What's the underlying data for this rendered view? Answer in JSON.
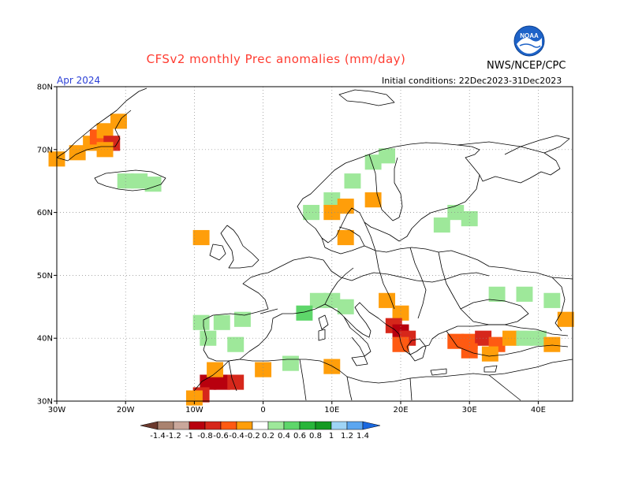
{
  "header": {
    "title": "CFSv2 monthly Prec anomalies (mm/day)",
    "source": "NWS/NCEP/CPC",
    "period": "Apr 2024",
    "initial_conditions": "Initial conditions: 22Dec2023-31Dec2023",
    "logo_text": "NOAA"
  },
  "map": {
    "lon_labels": [
      "30W",
      "20W",
      "10W",
      "0",
      "10E",
      "20E",
      "30E",
      "40E"
    ],
    "lat_labels": [
      "80N",
      "70N",
      "60N",
      "50N",
      "40N",
      "30N"
    ],
    "lon_values": [
      -30,
      -20,
      -10,
      0,
      10,
      20,
      30,
      40
    ],
    "lat_values": [
      80,
      70,
      60,
      50,
      40,
      30
    ],
    "extent": {
      "lon_min": -30,
      "lon_max": 45,
      "lat_min": 30,
      "lat_max": 80
    },
    "anomaly_cells": [
      {
        "lon": -30,
        "lat": 68.5,
        "v": -0.3
      },
      {
        "lon": -27,
        "lat": 69.5,
        "v": -0.3
      },
      {
        "lon": -25,
        "lat": 71,
        "v": -0.3
      },
      {
        "lon": -24,
        "lat": 72,
        "v": -0.4
      },
      {
        "lon": -23,
        "lat": 73,
        "v": -0.3
      },
      {
        "lon": -22,
        "lat": 71,
        "v": -0.6
      },
      {
        "lon": -23,
        "lat": 70,
        "v": -0.3
      },
      {
        "lon": -21,
        "lat": 74.5,
        "v": -0.3
      },
      {
        "lon": -20,
        "lat": 65,
        "v": 0.3
      },
      {
        "lon": -18,
        "lat": 65,
        "v": 0.3
      },
      {
        "lon": -16,
        "lat": 64.5,
        "v": 0.3
      },
      {
        "lon": 10,
        "lat": 62,
        "v": 0.3
      },
      {
        "lon": 13,
        "lat": 65,
        "v": 0.3
      },
      {
        "lon": 16,
        "lat": 68,
        "v": 0.3
      },
      {
        "lon": 18,
        "lat": 69,
        "v": 0.3
      },
      {
        "lon": 7,
        "lat": 60,
        "v": 0.3
      },
      {
        "lon": 10,
        "lat": 60,
        "v": -0.3
      },
      {
        "lon": 12,
        "lat": 61,
        "v": -0.3
      },
      {
        "lon": 16,
        "lat": 62,
        "v": -0.3
      },
      {
        "lon": 12,
        "lat": 56,
        "v": -0.3
      },
      {
        "lon": 28,
        "lat": 60,
        "v": 0.3
      },
      {
        "lon": 30,
        "lat": 59,
        "v": 0.3
      },
      {
        "lon": 26,
        "lat": 58,
        "v": 0.3
      },
      {
        "lon": -9,
        "lat": 56,
        "v": -0.3
      },
      {
        "lon": 8,
        "lat": 46,
        "v": 0.4
      },
      {
        "lon": 10,
        "lat": 46,
        "v": 0.3
      },
      {
        "lon": 12,
        "lat": 45,
        "v": 0.3
      },
      {
        "lon": 6,
        "lat": 44,
        "v": 0.5
      },
      {
        "lon": 18,
        "lat": 46,
        "v": -0.3
      },
      {
        "lon": 20,
        "lat": 44,
        "v": -0.3
      },
      {
        "lon": 19,
        "lat": 42,
        "v": -0.6
      },
      {
        "lon": 20,
        "lat": 41,
        "v": -0.8
      },
      {
        "lon": 21,
        "lat": 40,
        "v": -0.6
      },
      {
        "lon": 20,
        "lat": 39,
        "v": -0.4
      },
      {
        "lon": 28,
        "lat": 39.5,
        "v": -0.4
      },
      {
        "lon": 30,
        "lat": 39.5,
        "v": -0.5
      },
      {
        "lon": 32,
        "lat": 40,
        "v": -0.6
      },
      {
        "lon": 34,
        "lat": 39,
        "v": -0.4
      },
      {
        "lon": 30,
        "lat": 38,
        "v": -0.4
      },
      {
        "lon": 33,
        "lat": 37.5,
        "v": -0.3
      },
      {
        "lon": 36,
        "lat": 40,
        "v": -0.3
      },
      {
        "lon": 38,
        "lat": 40,
        "v": 0.3
      },
      {
        "lon": 40,
        "lat": 40,
        "v": 0.3
      },
      {
        "lon": 42,
        "lat": 39,
        "v": -0.3
      },
      {
        "lon": 44,
        "lat": 43,
        "v": -0.3
      },
      {
        "lon": 34,
        "lat": 47,
        "v": 0.3
      },
      {
        "lon": 38,
        "lat": 47,
        "v": 0.3
      },
      {
        "lon": 42,
        "lat": 46,
        "v": 0.3
      },
      {
        "lon": -9,
        "lat": 42.5,
        "v": 0.4
      },
      {
        "lon": -6,
        "lat": 42.5,
        "v": 0.3
      },
      {
        "lon": -3,
        "lat": 43,
        "v": 0.3
      },
      {
        "lon": -8,
        "lat": 40,
        "v": 0.3
      },
      {
        "lon": -4,
        "lat": 39,
        "v": 0.3
      },
      {
        "lon": 0,
        "lat": 35,
        "v": -0.3
      },
      {
        "lon": 4,
        "lat": 36,
        "v": 0.3
      },
      {
        "lon": 10,
        "lat": 35.5,
        "v": -0.3
      },
      {
        "lon": -8,
        "lat": 33,
        "v": -0.8
      },
      {
        "lon": -6,
        "lat": 33,
        "v": -0.8
      },
      {
        "lon": -4,
        "lat": 33,
        "v": -0.6
      },
      {
        "lon": -9,
        "lat": 31,
        "v": -0.6
      },
      {
        "lon": -10,
        "lat": 30.5,
        "v": -0.3
      },
      {
        "lon": -7,
        "lat": 35,
        "v": -0.3
      }
    ]
  },
  "colorbar": {
    "labels": [
      "-1.4",
      "-1.2",
      "-1",
      "-0.8",
      "-0.6",
      "-0.4",
      "-0.2",
      "0.2",
      "0.4",
      "0.6",
      "0.8",
      "1",
      "1.2",
      "1.4"
    ],
    "colors": [
      "#6b3a2e",
      "#a9826f",
      "#c9a79b",
      "#b8000e",
      "#d6271b",
      "#ff5a12",
      "#ff9e0a",
      "#ffffff",
      "#9ee89a",
      "#5ed66a",
      "#28b53a",
      "#149a22",
      "#9fd4f6",
      "#5ca6f0",
      "#1a68e0"
    ]
  }
}
